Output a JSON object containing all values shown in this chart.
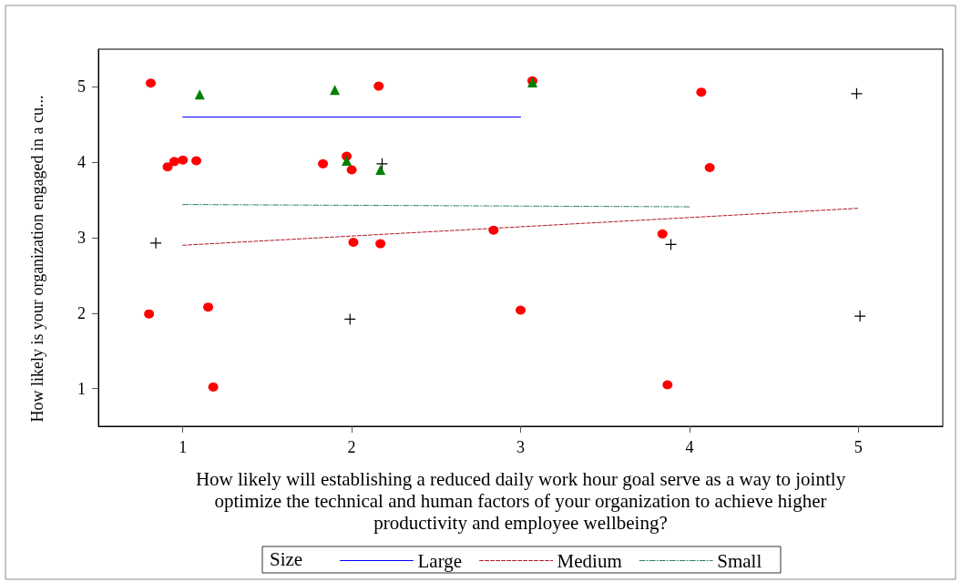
{
  "chart_data": {
    "type": "scatter",
    "xlabel": "How likely will establishing a reduced daily work hour goal serve as a way to jointly\noptimize the technical and human factors of your organization to achieve higher\nproductivity and employee wellbeing?",
    "ylabel": "How likely is your organization engaged in a cu...",
    "legend_title": "Size",
    "xlim": [
      0.5,
      5.5
    ],
    "xticks": [
      1,
      2,
      3,
      4,
      5
    ],
    "ylim": [
      0.5,
      5.5
    ],
    "yticks": [
      1,
      2,
      3,
      4,
      5
    ],
    "grid": false,
    "legend": "bottom",
    "series": [
      {
        "color": "#ff0000",
        "marker": "circle",
        "x": [
          0.81,
          0.91,
          0.95,
          1.0,
          1.08,
          1.83,
          1.97,
          2.0,
          2.16,
          2.01,
          2.17,
          3.07,
          2.84,
          4.07,
          4.12,
          3.84,
          0.8,
          1.15,
          1.18,
          3.0,
          3.87
        ],
        "values": [
          5.05,
          3.94,
          4.01,
          4.03,
          4.02,
          3.98,
          4.08,
          3.9,
          5.01,
          2.94,
          2.92,
          5.08,
          3.1,
          4.93,
          3.93,
          3.05,
          1.99,
          2.08,
          1.02,
          2.04,
          1.05
        ]
      },
      {
        "color": "#008000",
        "marker": "triangle",
        "x": [
          1.1,
          1.9,
          1.97,
          2.17,
          3.07
        ],
        "values": [
          4.9,
          4.96,
          4.02,
          3.9,
          5.06
        ]
      },
      {
        "color": "#000000",
        "marker": "cross",
        "x": [
          0.84,
          2.18,
          4.99,
          3.89,
          1.99,
          5.01
        ],
        "values": [
          2.93,
          3.98,
          4.91,
          2.91,
          1.92,
          1.96
        ]
      },
      {
        "type": "line",
        "name": "Large",
        "color": "#0000ff",
        "marker": "none",
        "line_style": "solid",
        "x": [
          1,
          3
        ],
        "values": [
          4.6,
          4.6
        ]
      },
      {
        "type": "line",
        "name": "Medium",
        "color": "#b2182b",
        "marker": "none",
        "line_style": "dashed",
        "x": [
          1,
          5
        ],
        "values": [
          2.9,
          3.39
        ]
      },
      {
        "type": "line",
        "name": "Small",
        "color": "#2f8070",
        "marker": "none",
        "line_style": "dashdot",
        "x": [
          1,
          4
        ],
        "values": [
          3.44,
          3.41
        ]
      }
    ]
  }
}
